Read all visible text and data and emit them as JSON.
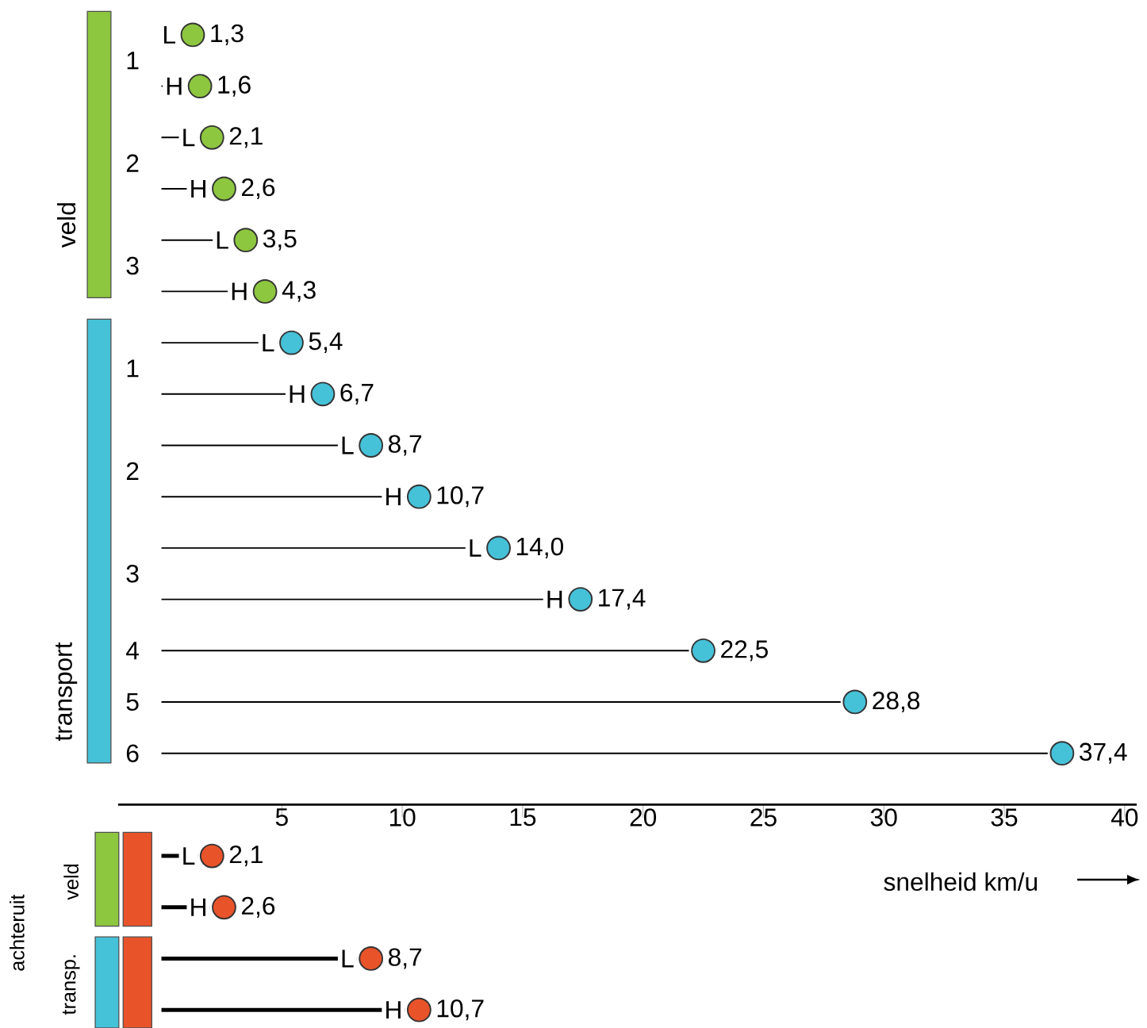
{
  "chart_data": {
    "type": "lollipop",
    "orientation": "horizontal",
    "xlabel": "snelheid km/u",
    "categories": [
      "L",
      "H",
      "L",
      "H",
      "L",
      "H",
      "L",
      "H",
      "L",
      "H",
      "L",
      "H",
      null,
      null,
      null,
      null,
      "L",
      "H",
      "L",
      "H"
    ],
    "values": [
      1.3,
      1.6,
      2.1,
      2.6,
      3.5,
      4.3,
      5.4,
      6.7,
      8.7,
      10.7,
      14.0,
      17.4,
      22.5,
      28.8,
      37.4,
      null,
      2.1,
      2.6,
      8.7,
      10.7
    ],
    "value_labels": [
      "1,3",
      "1,6",
      "2,1",
      "2,6",
      "3,5",
      "4,3",
      "5,4",
      "6,7",
      "8,7",
      "10,7",
      "14,0",
      "17,4",
      "22,5",
      "28,8",
      "37,4",
      null,
      "2,1",
      "2,6",
      "8,7",
      "10,7"
    ],
    "colors": [
      "#8dc63f",
      "#8dc63f",
      "#8dc63f",
      "#8dc63f",
      "#8dc63f",
      "#8dc63f",
      "#45c1d8",
      "#45c1d8",
      "#45c1d8",
      "#45c1d8",
      "#45c1d8",
      "#45c1d8",
      "#45c1d8",
      "#45c1d8",
      "#45c1d8",
      null,
      "#e8532a",
      "#e8532a",
      "#e8532a",
      "#e8532a"
    ],
    "xlim": [
      -1.8,
      40.5
    ],
    "xticks": [
      5,
      10,
      15,
      20,
      25,
      30,
      35,
      40
    ],
    "annotations": [
      "1",
      "2",
      "3",
      "1",
      "2",
      "3",
      "4",
      "5",
      "6",
      "veld",
      "transport",
      "veld",
      "transp.",
      "achteruit"
    ]
  }
}
